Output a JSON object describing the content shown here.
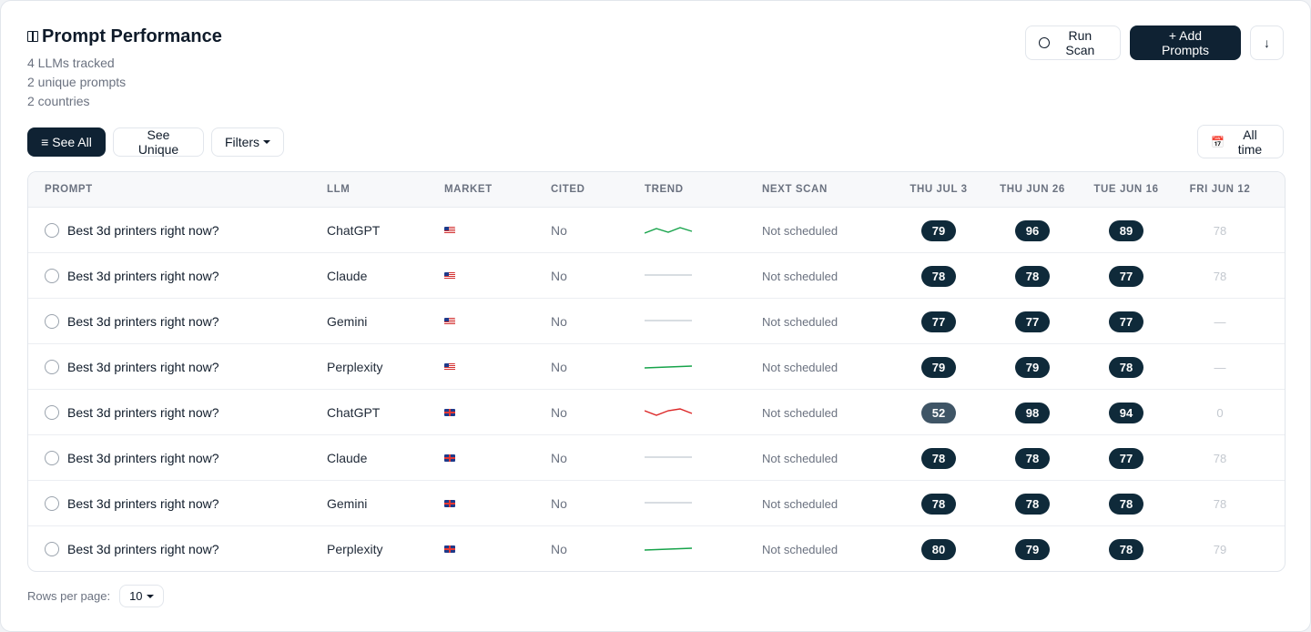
{
  "header": {
    "title": "Prompt Performance",
    "meta": [
      "4 LLMs tracked",
      "2 unique prompts",
      "2 countries"
    ]
  },
  "actions": {
    "run_scan": "Run Scan",
    "add_prompts": "+ Add Prompts",
    "download_icon": "↓"
  },
  "toolbar": {
    "see_all": "≡ See All",
    "see_unique": "See Unique",
    "filters": "Filters",
    "all_time": "All time",
    "calendar_icon": "📅"
  },
  "columns": [
    "PROMPT",
    "LLM",
    "MARKET",
    "CITED",
    "TREND",
    "NEXT SCAN",
    "THU JUL 3",
    "THU JUN 26",
    "TUE JUN 16",
    "FRI JUN 12"
  ],
  "rows": [
    {
      "prompt": "Best 3d printers right now?",
      "llm": "ChatGPT",
      "market": "us",
      "cited": "No",
      "trend": "up-green",
      "next_scan": "Not scheduled",
      "scores": [
        "79",
        "96",
        "89"
      ],
      "last": "78"
    },
    {
      "prompt": "Best 3d printers right now?",
      "llm": "Claude",
      "market": "us",
      "cited": "No",
      "trend": "flat-gray",
      "next_scan": "Not scheduled",
      "scores": [
        "78",
        "78",
        "77"
      ],
      "last": "78"
    },
    {
      "prompt": "Best 3d printers right now?",
      "llm": "Gemini",
      "market": "us",
      "cited": "No",
      "trend": "flat-gray",
      "next_scan": "Not scheduled",
      "scores": [
        "77",
        "77",
        "77"
      ],
      "last": "—"
    },
    {
      "prompt": "Best 3d printers right now?",
      "llm": "Perplexity",
      "market": "us",
      "cited": "No",
      "trend": "slight-green",
      "next_scan": "Not scheduled",
      "scores": [
        "79",
        "79",
        "78"
      ],
      "last": "—"
    },
    {
      "prompt": "Best 3d printers right now?",
      "llm": "ChatGPT",
      "market": "gb",
      "cited": "No",
      "trend": "zigzag-red",
      "next_scan": "Not scheduled",
      "scores": [
        "52",
        "98",
        "94"
      ],
      "last": "0"
    },
    {
      "prompt": "Best 3d printers right now?",
      "llm": "Claude",
      "market": "gb",
      "cited": "No",
      "trend": "flat-gray",
      "next_scan": "Not scheduled",
      "scores": [
        "78",
        "78",
        "77"
      ],
      "last": "78"
    },
    {
      "prompt": "Best 3d printers right now?",
      "llm": "Gemini",
      "market": "gb",
      "cited": "No",
      "trend": "flat-gray",
      "next_scan": "Not scheduled",
      "scores": [
        "78",
        "78",
        "78"
      ],
      "last": "78"
    },
    {
      "prompt": "Best 3d printers right now?",
      "llm": "Perplexity",
      "market": "gb",
      "cited": "No",
      "trend": "slight-green",
      "next_scan": "Not scheduled",
      "scores": [
        "80",
        "79",
        "78"
      ],
      "last": "79"
    }
  ],
  "footer": {
    "rows_per_page_label": "Rows per page:",
    "rows_per_page_value": "10"
  },
  "colors": {
    "primary": "#0f2233",
    "pill": "#0f2a3a",
    "pill_mid": "#3f5566",
    "trend_green": "#16a34a",
    "trend_red": "#dc2626",
    "trend_gray": "#cbd2d9"
  }
}
